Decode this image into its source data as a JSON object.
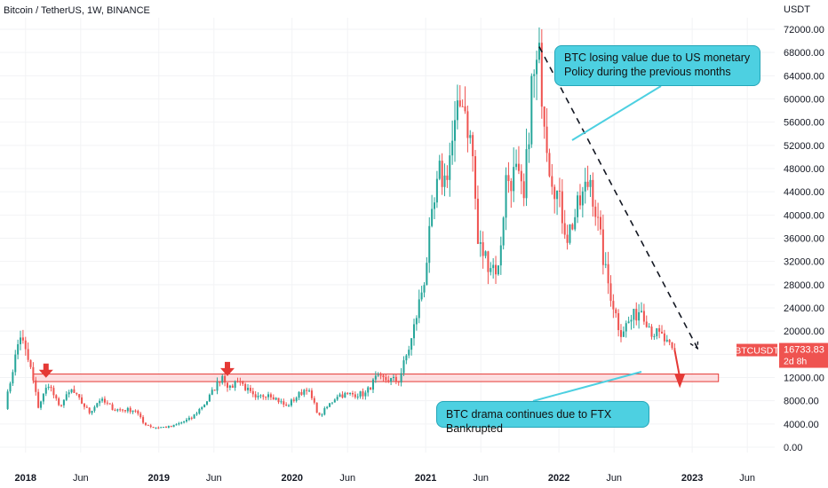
{
  "header": {
    "title": "Bitcoin / TetherUS, 1W, BINANCE",
    "currency": "USDT"
  },
  "annotations": {
    "callout_top": "BTC losing value due to US monetary Policy during the previous months",
    "callout_bottom": "BTC drama continues due to FTX Bankrupted"
  },
  "price_label": {
    "symbol": "BTCUSDT",
    "price": "16733.83",
    "countdown": "2d 8h"
  },
  "colors": {
    "up": "#26a69a",
    "down": "#ef5350",
    "zone_fill": "#fcd7d9",
    "zone_stroke": "#e53935",
    "arrow": "#e53935",
    "callout": "#4dd0e1",
    "price_label_bg": "#ef5350"
  },
  "chart_data": {
    "type": "candlestick",
    "interval": "1W",
    "y_axis": {
      "ticks": [
        0,
        4000,
        8000,
        12000,
        16000,
        20000,
        24000,
        28000,
        32000,
        36000,
        40000,
        44000,
        48000,
        52000,
        56000,
        60000,
        64000,
        68000,
        72000
      ],
      "tick_labels": [
        "0.00",
        "4000.00",
        "8000.00",
        "12000.00",
        "16000.00",
        "20000.00",
        "24000.00",
        "28000.00",
        "32000.00",
        "36000.00",
        "40000.00",
        "44000.00",
        "48000.00",
        "52000.00",
        "56000.00",
        "60000.00",
        "64000.00",
        "68000.00",
        "72000.00"
      ],
      "range": [
        -1000,
        74000
      ]
    },
    "x_axis": {
      "ticks": [
        "2018-01-01",
        "2018-06-01",
        "2019-01-01",
        "2019-06-01",
        "2020-01-01",
        "2020-06-01",
        "2021-01-01",
        "2021-06-01",
        "2022-01-01",
        "2022-06-01",
        "2023-01-01",
        "2023-06-01"
      ],
      "tick_labels": [
        "2018",
        "Jun",
        "2019",
        "Jun",
        "2020",
        "Jun",
        "2021",
        "Jun",
        "2022",
        "Jun",
        "2023",
        "Jun"
      ],
      "bold": [
        true,
        false,
        true,
        false,
        true,
        false,
        true,
        false,
        true,
        false,
        true,
        false
      ],
      "range": [
        "2017-10-23",
        "2023-08-15"
      ]
    },
    "price_path": [
      [
        "2017-11-06",
        7000
      ],
      [
        "2017-12-17",
        19500
      ],
      [
        "2018-01-15",
        13500
      ],
      [
        "2018-02-05",
        7000
      ],
      [
        "2018-03-05",
        11000
      ],
      [
        "2018-04-02",
        7000
      ],
      [
        "2018-05-07",
        9800
      ],
      [
        "2018-06-25",
        6000
      ],
      [
        "2018-07-23",
        8200
      ],
      [
        "2018-09-03",
        6500
      ],
      [
        "2018-10-29",
        6400
      ],
      [
        "2018-11-19",
        4200
      ],
      [
        "2018-12-17",
        3400
      ],
      [
        "2019-02-04",
        3500
      ],
      [
        "2019-04-01",
        5000
      ],
      [
        "2019-05-13",
        8000
      ],
      [
        "2019-06-24",
        12400
      ],
      [
        "2019-07-15",
        10000
      ],
      [
        "2019-08-05",
        11800
      ],
      [
        "2019-09-23",
        8200
      ],
      [
        "2019-10-28",
        9400
      ],
      [
        "2019-12-16",
        7000
      ],
      [
        "2020-02-10",
        10300
      ],
      [
        "2020-03-16",
        5300
      ],
      [
        "2020-05-04",
        9000
      ],
      [
        "2020-07-20",
        9200
      ],
      [
        "2020-08-17",
        11800
      ],
      [
        "2020-10-19",
        11500
      ],
      [
        "2020-11-23",
        18500
      ],
      [
        "2020-12-28",
        29000
      ],
      [
        "2021-01-11",
        36000
      ],
      [
        "2021-02-08",
        47000
      ],
      [
        "2021-02-22",
        46000
      ],
      [
        "2021-04-12",
        61000
      ],
      [
        "2021-05-10",
        50000
      ],
      [
        "2021-05-24",
        35000
      ],
      [
        "2021-06-21",
        32000
      ],
      [
        "2021-07-19",
        30500
      ],
      [
        "2021-08-09",
        46000
      ],
      [
        "2021-09-06",
        47000
      ],
      [
        "2021-09-27",
        42000
      ],
      [
        "2021-10-18",
        62000
      ],
      [
        "2021-11-08",
        66500
      ],
      [
        "2021-12-06",
        49000
      ],
      [
        "2022-01-24",
        36500
      ],
      [
        "2022-03-28",
        46500
      ],
      [
        "2022-05-09",
        30000
      ],
      [
        "2022-06-13",
        21000
      ],
      [
        "2022-06-20",
        20000
      ],
      [
        "2022-08-15",
        24000
      ],
      [
        "2022-09-12",
        20000
      ],
      [
        "2022-10-10",
        19000
      ],
      [
        "2022-11-07",
        16500
      ],
      [
        "2022-11-14",
        16733.83
      ]
    ],
    "annotation_zone": {
      "from_date": "2018-01-22",
      "to_date": "2023-03-14",
      "low": 11300,
      "high": 12600
    },
    "down_arrows": [
      {
        "date": "2018-02-26",
        "price": 14400
      },
      {
        "date": "2019-07-08",
        "price": 14700
      }
    ],
    "trend_line": {
      "from": [
        "2021-11-08",
        69000
      ],
      "to": [
        "2023-01-16",
        17000
      ],
      "style": "dashed"
    },
    "projection_arrow": {
      "from": [
        "2022-11-14",
        16733.83
      ],
      "to": [
        "2022-11-28",
        10500
      ]
    },
    "last_price": 16733.83
  }
}
